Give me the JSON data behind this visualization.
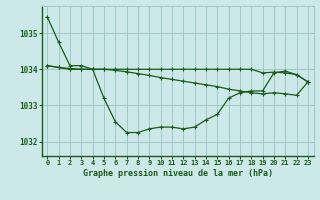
{
  "title": "Graphe pression niveau de la mer (hPa)",
  "bg_color": "#cce8e8",
  "line_color": "#1a5c1a",
  "grid_color": "#a0c8c8",
  "ylim": [
    1031.6,
    1035.75
  ],
  "xlim": [
    -0.5,
    23.5
  ],
  "yticks": [
    1032,
    1033,
    1034,
    1035
  ],
  "xticks": [
    0,
    1,
    2,
    3,
    4,
    5,
    6,
    7,
    8,
    9,
    10,
    11,
    12,
    13,
    14,
    15,
    16,
    17,
    18,
    19,
    20,
    21,
    22,
    23
  ],
  "line1": [
    1035.45,
    1034.75,
    1034.1,
    1034.1,
    1034.0,
    1033.2,
    1032.55,
    1032.25,
    1032.25,
    1032.35,
    1032.4,
    1032.4,
    1032.35,
    1032.4,
    1032.6,
    1032.75,
    1033.2,
    1033.35,
    1033.4,
    1033.4,
    1033.9,
    1033.95,
    1033.85,
    1033.65
  ],
  "line2": [
    1034.1,
    1034.05,
    1034.0,
    1034.0,
    1034.0,
    1034.0,
    1034.0,
    1034.0,
    1034.0,
    1034.0,
    1034.0,
    1034.0,
    1034.0,
    1034.0,
    1034.0,
    1034.0,
    1034.0,
    1034.0,
    1034.0,
    1033.9,
    1033.92,
    1033.9,
    1033.85,
    1033.65
  ],
  "line3": [
    1034.1,
    1034.05,
    1034.02,
    1034.0,
    1034.0,
    1034.0,
    1033.97,
    1033.93,
    1033.88,
    1033.83,
    1033.77,
    1033.72,
    1033.67,
    1033.62,
    1033.57,
    1033.52,
    1033.45,
    1033.4,
    1033.35,
    1033.32,
    1033.35,
    1033.32,
    1033.28,
    1033.65
  ]
}
